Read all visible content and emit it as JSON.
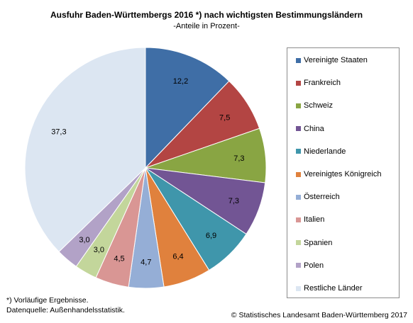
{
  "chart_data": {
    "type": "pie",
    "title": "Ausfuhr Baden-Württembergs 2016 *) nach wichtigsten Bestimmungsländern",
    "subtitle": "-Anteile in Prozent-",
    "slices": [
      {
        "label": "Vereinigte Staaten",
        "value": 12.2,
        "display": "12,2",
        "color": "#3f6ea6",
        "label_color": "#ffffff"
      },
      {
        "label": "Frankreich",
        "value": 7.5,
        "display": "7,5",
        "color": "#b34543",
        "label_color": "#ffffff"
      },
      {
        "label": "Schweiz",
        "value": 7.3,
        "display": "7,3",
        "color": "#89a543",
        "label_color": "#ffffff"
      },
      {
        "label": "China",
        "value": 7.3,
        "display": "7,3",
        "color": "#725594",
        "label_color": "#ffffff"
      },
      {
        "label": "Niederlande",
        "value": 6.9,
        "display": "6,9",
        "color": "#3f96ab",
        "label_color": "#000000"
      },
      {
        "label": "Vereinigtes Königreich",
        "value": 6.4,
        "display": "6,4",
        "color": "#e0813d",
        "label_color": "#000000"
      },
      {
        "label": "Österreich",
        "value": 4.7,
        "display": "4,7",
        "color": "#95aed6",
        "label_color": "#000000"
      },
      {
        "label": "Italien",
        "value": 4.5,
        "display": "4,5",
        "color": "#d99694",
        "label_color": "#000000"
      },
      {
        "label": "Spanien",
        "value": 3.0,
        "display": "3,0",
        "color": "#c3d69b",
        "label_color": "#000000"
      },
      {
        "label": "Polen",
        "value": 3.0,
        "display": "3,0",
        "color": "#b2a2c7",
        "label_color": "#000000"
      },
      {
        "label": "Restliche Länder",
        "value": 37.3,
        "display": "37,3",
        "color": "#dce6f2",
        "label_color": "#000000"
      }
    ],
    "legend_position": "right"
  },
  "footnotes": {
    "line1": "*) Vorläufige Ergebnisse.",
    "line2": "Datenquelle: Außenhandelsstatistik."
  },
  "copyright": "© Statistisches Landesamt Baden-Württemberg 2017"
}
